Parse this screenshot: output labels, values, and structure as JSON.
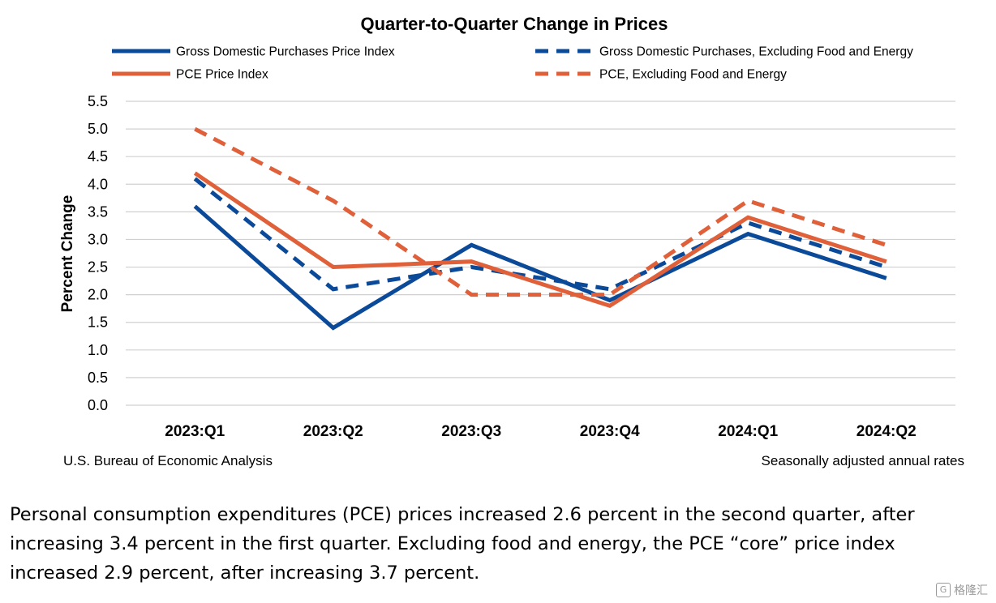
{
  "chart_data": {
    "type": "line",
    "title": "Quarter-to-Quarter Change in Prices",
    "ylabel": "Percent Change",
    "xlabel": "",
    "categories": [
      "2023:Q1",
      "2023:Q2",
      "2023:Q3",
      "2023:Q4",
      "2024:Q1",
      "2024:Q2"
    ],
    "ylim": [
      0.0,
      5.5
    ],
    "yticks": [
      "0.0",
      "0.5",
      "1.0",
      "1.5",
      "2.0",
      "2.5",
      "3.0",
      "3.5",
      "4.0",
      "4.5",
      "5.0",
      "5.5"
    ],
    "grid": "horizontal",
    "legend_position": "top",
    "series": [
      {
        "name": "Gross Domestic Purchases Price Index",
        "values": [
          3.6,
          1.4,
          2.9,
          1.9,
          3.1,
          2.3
        ],
        "color": "#0b4a99",
        "dash": "solid"
      },
      {
        "name": "Gross Domestic Purchases, Excluding Food and Energy",
        "values": [
          4.1,
          2.1,
          2.5,
          2.1,
          3.3,
          2.5
        ],
        "color": "#0b4a99",
        "dash": "dashed"
      },
      {
        "name": "PCE Price Index",
        "values": [
          4.2,
          2.5,
          2.6,
          1.8,
          3.4,
          2.6
        ],
        "color": "#e0603a",
        "dash": "solid"
      },
      {
        "name": "PCE, Excluding Food and Energy",
        "values": [
          5.0,
          3.7,
          2.0,
          2.0,
          3.7,
          2.9
        ],
        "color": "#e0603a",
        "dash": "dashed"
      }
    ]
  },
  "footer": {
    "source": "U.S. Bureau of Economic Analysis",
    "note": "Seasonally adjusted annual rates"
  },
  "caption": {
    "text": "Personal consumption expenditures (PCE) prices increased 2.6 percent in the second quarter, after increasing 3.4 percent in the first quarter. Excluding food and energy, the PCE “core” price index increased 2.9 percent, after increasing 3.7 percent."
  },
  "watermark": {
    "icon": "g-logo-icon",
    "text": "格隆汇"
  }
}
